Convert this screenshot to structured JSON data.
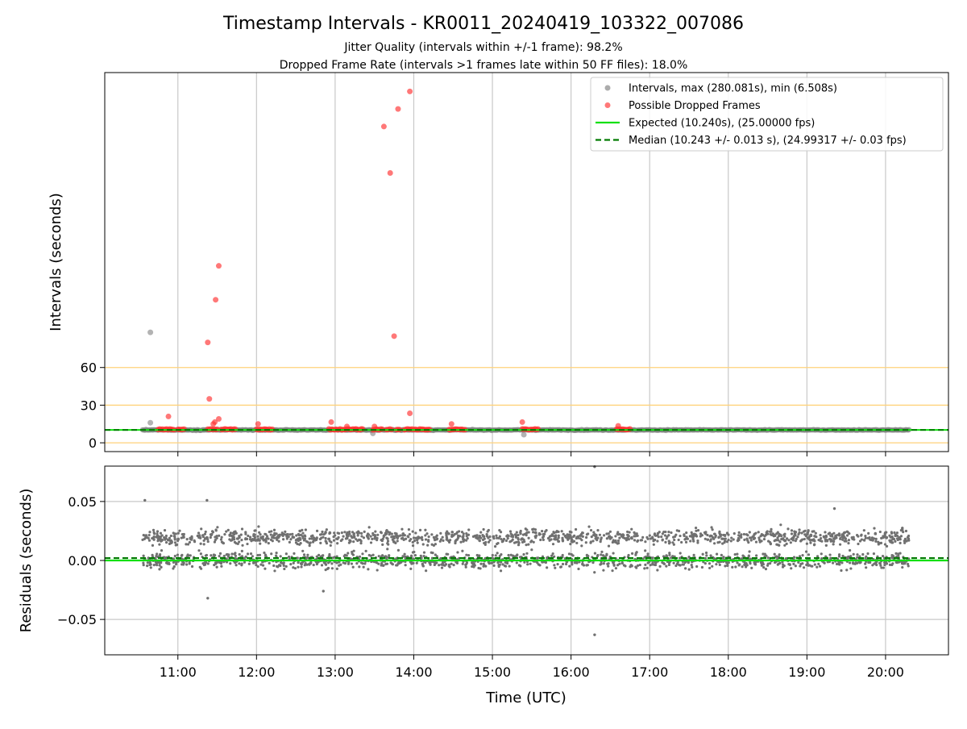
{
  "chart_data": [
    {
      "panel": "intervals",
      "type": "scatter",
      "title": "Timestamp Intervals - KR0011_20240419_103322_007086",
      "subtitle_1": "Jitter Quality (intervals within +/-1 frame): 98.2%",
      "subtitle_2": "Dropped Frame Rate (intervals >1 frames late within 50 FF files): 18.0%",
      "xlabel": "",
      "ylabel": "Intervals (seconds)",
      "x_unit": "hours UTC",
      "xlim": [
        10.07,
        20.8
      ],
      "ylim": [
        -7,
        295
      ],
      "yticks": [
        0,
        30,
        60
      ],
      "ytick_labels": [
        "0",
        "30",
        "60"
      ],
      "grid": true,
      "hlines": [
        0,
        30,
        60
      ],
      "hline_color": "#ffd27a",
      "legend_position": "top-right",
      "legend": [
        "Intervals, max (280.081s), min (6.508s)",
        "Possible Dropped Frames",
        "Expected (10.240s), (25.00000 fps)",
        "Median (10.243 +/- 0.013 s), (24.99317 +/- 0.03 fps)"
      ],
      "colors": {
        "intervals": "#808080",
        "dropped": "#ff3030",
        "expected": "#10e010",
        "median": "#007a00"
      },
      "expected": 10.24,
      "median": 10.243,
      "interval_range": [
        10.55,
        20.3
      ],
      "interval_points": [
        {
          "x": 10.65,
          "y": 88.0
        },
        {
          "x": 10.65,
          "y": 16.0
        },
        {
          "x": 13.48,
          "y": 7.5
        },
        {
          "x": 15.4,
          "y": 6.5
        }
      ],
      "dropped_points": [
        {
          "x": 10.88,
          "y": 21.0
        },
        {
          "x": 11.38,
          "y": 80.0
        },
        {
          "x": 11.4,
          "y": 35.0
        },
        {
          "x": 11.45,
          "y": 15.0
        },
        {
          "x": 11.48,
          "y": 114.0
        },
        {
          "x": 11.52,
          "y": 141.0
        },
        {
          "x": 11.52,
          "y": 19.0
        },
        {
          "x": 11.47,
          "y": 16.5
        },
        {
          "x": 12.02,
          "y": 15.0
        },
        {
          "x": 12.95,
          "y": 16.5
        },
        {
          "x": 13.15,
          "y": 13.0
        },
        {
          "x": 13.5,
          "y": 13.0
        },
        {
          "x": 13.62,
          "y": 252.0
        },
        {
          "x": 13.7,
          "y": 215.0
        },
        {
          "x": 13.75,
          "y": 85.0
        },
        {
          "x": 13.8,
          "y": 266.0
        },
        {
          "x": 13.95,
          "y": 280.0
        },
        {
          "x": 13.95,
          "y": 23.5
        },
        {
          "x": 14.48,
          "y": 15.0
        },
        {
          "x": 15.38,
          "y": 16.5
        },
        {
          "x": 16.6,
          "y": 13.5
        }
      ],
      "dropped_clusters": [
        [
          10.75,
          10.95
        ],
        [
          11.0,
          11.08
        ],
        [
          11.38,
          11.5
        ],
        [
          11.55,
          11.73
        ],
        [
          12.0,
          12.2
        ],
        [
          12.92,
          13.1
        ],
        [
          13.12,
          13.35
        ],
        [
          13.48,
          13.6
        ],
        [
          13.65,
          13.72
        ],
        [
          13.78,
          13.82
        ],
        [
          13.88,
          14.0
        ],
        [
          14.02,
          14.2
        ],
        [
          14.45,
          14.65
        ],
        [
          15.38,
          15.58
        ],
        [
          16.58,
          16.75
        ]
      ]
    },
    {
      "panel": "residuals",
      "type": "scatter",
      "xlabel": "Time (UTC)",
      "ylabel": "Residuals (seconds)",
      "xlim": [
        10.07,
        20.8
      ],
      "ylim": [
        -0.08,
        0.08
      ],
      "yticks": [
        0.05,
        0.0,
        -0.05
      ],
      "ytick_labels": [
        "0.05",
        "0.00",
        "−0.05"
      ],
      "xticks": [
        11,
        12,
        13,
        14,
        15,
        16,
        17,
        18,
        19,
        20
      ],
      "xtick_labels": [
        "11:00",
        "12:00",
        "13:00",
        "14:00",
        "15:00",
        "16:00",
        "17:00",
        "18:00",
        "19:00",
        "20:00"
      ],
      "grid": true,
      "expected_line": 0.0,
      "median_line": 0.002,
      "residual_range": [
        10.55,
        20.3
      ],
      "residual_bands": [
        0.0,
        0.02
      ],
      "outliers": [
        {
          "x": 10.58,
          "y": 0.051
        },
        {
          "x": 11.37,
          "y": 0.051
        },
        {
          "x": 11.38,
          "y": -0.032
        },
        {
          "x": 12.85,
          "y": -0.026
        },
        {
          "x": 16.3,
          "y": -0.063
        },
        {
          "x": 19.35,
          "y": 0.044
        },
        {
          "x": 16.3,
          "y": 0.08
        }
      ]
    }
  ]
}
